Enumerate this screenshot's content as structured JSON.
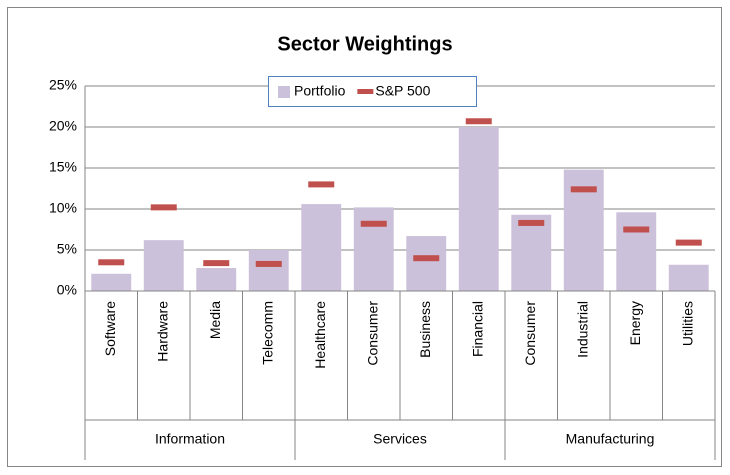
{
  "chart_data": {
    "type": "bar",
    "title": "Sector Weightings",
    "groups": [
      {
        "name": "Information",
        "categories": [
          "Software",
          "Hardware",
          "Media",
          "Telecomm"
        ]
      },
      {
        "name": "Services",
        "categories": [
          "Healthcare",
          "Consumer",
          "Business",
          "Financial"
        ]
      },
      {
        "name": "Manufacturing",
        "categories": [
          "Consumer",
          "Industrial",
          "Energy",
          "Utilities"
        ]
      }
    ],
    "series": [
      {
        "name": "Portfolio",
        "color": "#ccc1da",
        "mark": "bar",
        "values": [
          2.1,
          6.2,
          2.8,
          5.0,
          10.6,
          10.2,
          6.7,
          20.0,
          9.3,
          14.8,
          9.6,
          3.2
        ]
      },
      {
        "name": "S&P 500",
        "color": "#c0504d",
        "mark": "dash",
        "values": [
          3.5,
          10.2,
          3.4,
          3.3,
          13.0,
          8.2,
          4.0,
          20.7,
          8.3,
          12.4,
          7.5,
          5.9
        ]
      }
    ],
    "ylim": [
      0,
      25
    ],
    "yticks": [
      {
        "value": 0,
        "label": "0%"
      },
      {
        "value": 5,
        "label": "5%"
      },
      {
        "value": 10,
        "label": "10%"
      },
      {
        "value": 15,
        "label": "15%"
      },
      {
        "value": 20,
        "label": "20%"
      },
      {
        "value": 25,
        "label": "25%"
      }
    ],
    "grid": true,
    "legend": "top"
  }
}
